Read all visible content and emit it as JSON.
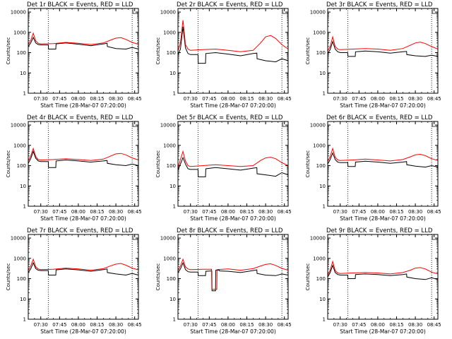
{
  "figure": {
    "background": "#ffffff",
    "events_color": "#000000",
    "lld_color": "#ff0000"
  },
  "chart_data": [
    {
      "type": "line",
      "title": "Det 1r BLACK = Events, RED = LLD",
      "xlabel": "Start Time (28-Mar-07 07:20:00)",
      "ylabel": "Counts/sec",
      "xticks": [
        "07:30",
        "07:45",
        "08:00",
        "08:15",
        "08:30",
        "08:45"
      ],
      "yticks": [
        "1",
        "10",
        "100",
        "1000",
        "10000"
      ],
      "yscale": "log",
      "ylim": [
        1,
        15000
      ],
      "xlim": [
        0,
        88
      ],
      "dotted_vlines_min": [
        16,
        83
      ],
      "series": [
        {
          "name": "Events",
          "color": "#000000",
          "x": [
            0,
            2,
            4,
            6,
            8,
            10,
            15,
            16,
            16.2,
            22,
            22.2,
            30,
            40,
            50,
            60,
            63,
            63.2,
            70,
            78,
            83,
            88
          ],
          "y": [
            200,
            300,
            560,
            300,
            250,
            240,
            240,
            240,
            150,
            150,
            270,
            300,
            260,
            220,
            270,
            290,
            200,
            160,
            150,
            180,
            150
          ]
        },
        {
          "name": "LLD",
          "color": "#ff0000",
          "x": [
            0,
            2,
            4,
            6,
            8,
            10,
            20,
            30,
            40,
            50,
            60,
            66,
            70,
            74,
            78,
            83,
            88
          ],
          "y": [
            250,
            400,
            900,
            380,
            290,
            270,
            280,
            320,
            290,
            250,
            300,
            420,
            520,
            550,
            450,
            320,
            260
          ]
        }
      ]
    },
    {
      "type": "line",
      "title": "Det 2r BLACK = Events, RED = LLD",
      "xlabel": "Start Time (28-Mar-07 07:20:00)",
      "ylabel": "Counts/sec",
      "xticks": [
        "07:30",
        "07:45",
        "08:00",
        "08:15",
        "08:30",
        "08:45"
      ],
      "yticks": [
        "1",
        "10",
        "100",
        "1000",
        "10000"
      ],
      "yscale": "log",
      "ylim": [
        1,
        15000
      ],
      "xlim": [
        0,
        88
      ],
      "dotted_vlines_min": [
        16,
        83
      ],
      "series": [
        {
          "name": "Events",
          "color": "#000000",
          "x": [
            0,
            2,
            4,
            6,
            8,
            10,
            15,
            16,
            16.2,
            22,
            22.2,
            30,
            40,
            50,
            60,
            63,
            63.2,
            70,
            78,
            83,
            88
          ],
          "y": [
            80,
            150,
            1900,
            170,
            90,
            80,
            80,
            80,
            30,
            30,
            90,
            100,
            85,
            70,
            90,
            95,
            50,
            40,
            35,
            50,
            40
          ]
        },
        {
          "name": "LLD",
          "color": "#ff0000",
          "x": [
            0,
            2,
            4,
            6,
            8,
            10,
            20,
            30,
            40,
            50,
            60,
            66,
            70,
            74,
            78,
            83,
            88
          ],
          "y": [
            120,
            300,
            4000,
            250,
            150,
            130,
            140,
            150,
            130,
            110,
            130,
            300,
            600,
            700,
            500,
            250,
            150
          ]
        }
      ]
    },
    {
      "type": "line",
      "title": "Det 3r BLACK = Events, RED = LLD",
      "xlabel": "Start Time (28-Mar-07 07:20:00)",
      "ylabel": "Counts/sec",
      "xticks": [
        "07:30",
        "07:45",
        "08:00",
        "08:15",
        "08:30",
        "08:45"
      ],
      "yticks": [
        "1",
        "10",
        "100",
        "1000",
        "10000"
      ],
      "yscale": "log",
      "ylim": [
        1,
        15000
      ],
      "xlim": [
        0,
        88
      ],
      "dotted_vlines_min": [
        16,
        83
      ],
      "series": [
        {
          "name": "Events",
          "color": "#000000",
          "x": [
            0,
            2,
            4,
            6,
            8,
            10,
            15,
            16,
            16.2,
            22,
            22.2,
            30,
            40,
            50,
            60,
            63,
            63.2,
            70,
            78,
            83,
            88
          ],
          "y": [
            90,
            140,
            350,
            150,
            110,
            100,
            100,
            100,
            65,
            65,
            110,
            120,
            110,
            95,
            110,
            115,
            80,
            70,
            65,
            75,
            65
          ]
        },
        {
          "name": "LLD",
          "color": "#ff0000",
          "x": [
            0,
            2,
            4,
            6,
            8,
            10,
            20,
            30,
            40,
            50,
            60,
            66,
            70,
            74,
            78,
            83,
            88
          ],
          "y": [
            120,
            200,
            600,
            200,
            150,
            140,
            150,
            160,
            150,
            130,
            160,
            230,
            300,
            330,
            280,
            200,
            150
          ]
        }
      ]
    },
    {
      "type": "line",
      "title": "Det 4r BLACK = Events, RED = LLD",
      "xlabel": "Start Time (28-Mar-07 07:20:00)",
      "ylabel": "Counts/sec",
      "xticks": [
        "07:30",
        "07:45",
        "08:00",
        "08:15",
        "08:30",
        "08:45"
      ],
      "yticks": [
        "1",
        "10",
        "100",
        "1000",
        "10000"
      ],
      "yscale": "log",
      "ylim": [
        1,
        15000
      ],
      "xlim": [
        0,
        88
      ],
      "dotted_vlines_min": [
        16,
        83
      ],
      "series": [
        {
          "name": "Events",
          "color": "#000000",
          "x": [
            0,
            2,
            4,
            6,
            8,
            10,
            15,
            16,
            16.2,
            22,
            22.2,
            30,
            40,
            50,
            60,
            63,
            63.2,
            70,
            78,
            83,
            88
          ],
          "y": [
            130,
            220,
            500,
            230,
            170,
            160,
            160,
            160,
            80,
            80,
            170,
            190,
            170,
            150,
            170,
            180,
            130,
            110,
            100,
            120,
            100
          ]
        },
        {
          "name": "LLD",
          "color": "#ff0000",
          "x": [
            0,
            2,
            4,
            6,
            8,
            10,
            20,
            30,
            40,
            50,
            60,
            66,
            70,
            74,
            78,
            83,
            88
          ],
          "y": [
            170,
            300,
            700,
            280,
            200,
            190,
            200,
            220,
            200,
            180,
            210,
            300,
            380,
            400,
            340,
            240,
            190
          ]
        }
      ]
    },
    {
      "type": "line",
      "title": "Det 5r BLACK = Events, RED = LLD",
      "xlabel": "Start Time (28-Mar-07 07:20:00)",
      "ylabel": "Counts/sec",
      "xticks": [
        "07:30",
        "07:45",
        "08:00",
        "08:15",
        "08:30",
        "08:45"
      ],
      "yticks": [
        "1",
        "10",
        "100",
        "1000",
        "10000"
      ],
      "yscale": "log",
      "ylim": [
        1,
        15000
      ],
      "xlim": [
        0,
        88
      ],
      "dotted_vlines_min": [
        16,
        83
      ],
      "series": [
        {
          "name": "Events",
          "color": "#000000",
          "x": [
            0,
            2,
            4,
            6,
            8,
            10,
            15,
            16,
            16.2,
            22,
            22.2,
            30,
            40,
            50,
            60,
            63,
            63.2,
            70,
            78,
            83,
            88
          ],
          "y": [
            60,
            120,
            250,
            120,
            70,
            65,
            65,
            65,
            28,
            28,
            70,
            80,
            70,
            60,
            75,
            80,
            40,
            35,
            30,
            45,
            35
          ]
        },
        {
          "name": "LLD",
          "color": "#ff0000",
          "x": [
            0,
            2,
            4,
            6,
            8,
            10,
            20,
            30,
            40,
            50,
            60,
            66,
            70,
            74,
            78,
            83,
            88
          ],
          "y": [
            80,
            200,
            500,
            170,
            100,
            90,
            100,
            110,
            100,
            90,
            100,
            180,
            240,
            260,
            220,
            140,
            100
          ]
        }
      ]
    },
    {
      "type": "line",
      "title": "Det 6r BLACK = Events, RED = LLD",
      "xlabel": "Start Time (28-Mar-07 07:20:00)",
      "ylabel": "Counts/sec",
      "xticks": [
        "07:30",
        "07:45",
        "08:00",
        "08:15",
        "08:30",
        "08:45"
      ],
      "yticks": [
        "1",
        "10",
        "100",
        "1000",
        "10000"
      ],
      "yscale": "log",
      "ylim": [
        1,
        15000
      ],
      "xlim": [
        0,
        88
      ],
      "dotted_vlines_min": [
        16,
        83
      ],
      "series": [
        {
          "name": "Events",
          "color": "#000000",
          "x": [
            0,
            2,
            4,
            6,
            8,
            10,
            15,
            16,
            16.2,
            22,
            22.2,
            30,
            40,
            50,
            60,
            63,
            63.2,
            70,
            78,
            83,
            88
          ],
          "y": [
            120,
            200,
            420,
            200,
            150,
            140,
            140,
            140,
            90,
            90,
            150,
            165,
            150,
            130,
            150,
            160,
            110,
            95,
            85,
            100,
            85
          ]
        },
        {
          "name": "LLD",
          "color": "#ff0000",
          "x": [
            0,
            2,
            4,
            6,
            8,
            10,
            20,
            30,
            40,
            50,
            60,
            66,
            70,
            74,
            78,
            83,
            88
          ],
          "y": [
            160,
            280,
            700,
            260,
            190,
            180,
            190,
            210,
            190,
            170,
            200,
            270,
            340,
            360,
            310,
            220,
            180
          ]
        }
      ]
    },
    {
      "type": "line",
      "title": "Det 7r BLACK = Events, RED = LLD",
      "xlabel": "Start Time (28-Mar-07 07:20:00)",
      "ylabel": "Counts/sec",
      "xticks": [
        "07:30",
        "07:45",
        "08:00",
        "08:15",
        "08:30",
        "08:45"
      ],
      "yticks": [
        "1",
        "10",
        "100",
        "1000",
        "10000"
      ],
      "yscale": "log",
      "ylim": [
        1,
        15000
      ],
      "xlim": [
        0,
        88
      ],
      "dotted_vlines_min": [
        16,
        83
      ],
      "series": [
        {
          "name": "Events",
          "color": "#000000",
          "x": [
            0,
            2,
            4,
            6,
            8,
            10,
            15,
            16,
            16.2,
            22,
            22.2,
            30,
            40,
            50,
            60,
            63,
            63.2,
            70,
            78,
            83,
            88
          ],
          "y": [
            200,
            300,
            600,
            310,
            260,
            250,
            250,
            250,
            150,
            150,
            270,
            300,
            270,
            230,
            280,
            300,
            200,
            170,
            150,
            180,
            150
          ]
        },
        {
          "name": "LLD",
          "color": "#ff0000",
          "x": [
            0,
            2,
            4,
            6,
            8,
            10,
            20,
            30,
            40,
            50,
            60,
            66,
            70,
            74,
            78,
            83,
            88
          ],
          "y": [
            250,
            420,
            900,
            380,
            300,
            280,
            290,
            330,
            300,
            260,
            310,
            430,
            520,
            560,
            460,
            330,
            270
          ]
        }
      ]
    },
    {
      "type": "line",
      "title": "Det 8r BLACK = Events, RED = LLD",
      "xlabel": "Start Time (28-Mar-07 07:20:00)",
      "ylabel": "Counts/sec",
      "xticks": [
        "07:30",
        "07:45",
        "08:00",
        "08:15",
        "08:30",
        "08:45"
      ],
      "yticks": [
        "1",
        "10",
        "100",
        "1000",
        "10000"
      ],
      "yscale": "log",
      "ylim": [
        1,
        15000
      ],
      "xlim": [
        0,
        88
      ],
      "dotted_vlines_min": [
        16,
        83
      ],
      "series": [
        {
          "name": "Events",
          "color": "#000000",
          "x": [
            0,
            2,
            4,
            6,
            8,
            10,
            15,
            16,
            16.2,
            22,
            22.2,
            27,
            27.2,
            30,
            30.2,
            33,
            33.2,
            40,
            50,
            60,
            63,
            63.2,
            70,
            78,
            83,
            88
          ],
          "y": [
            200,
            300,
            600,
            280,
            220,
            210,
            210,
            210,
            140,
            140,
            230,
            240,
            25,
            25,
            260,
            260,
            240,
            230,
            200,
            250,
            270,
            180,
            150,
            140,
            170,
            150
          ]
        },
        {
          "name": "LLD",
          "color": "#ff0000",
          "x": [
            0,
            2,
            4,
            6,
            8,
            10,
            20,
            26.8,
            27,
            27.2,
            31,
            31.2,
            40,
            50,
            60,
            66,
            70,
            74,
            78,
            83,
            88
          ],
          "y": [
            250,
            420,
            900,
            380,
            300,
            280,
            290,
            290,
            30,
            30,
            30,
            280,
            300,
            260,
            310,
            420,
            500,
            540,
            450,
            320,
            260
          ]
        }
      ]
    },
    {
      "type": "line",
      "title": "Det 9r BLACK = Events, RED = LLD",
      "xlabel": "Start Time (28-Mar-07 07:20:00)",
      "ylabel": "Counts/sec",
      "xticks": [
        "07:30",
        "07:45",
        "08:00",
        "08:15",
        "08:30",
        "08:45"
      ],
      "yticks": [
        "1",
        "10",
        "100",
        "1000",
        "10000"
      ],
      "yscale": "log",
      "ylim": [
        1,
        15000
      ],
      "xlim": [
        0,
        88
      ],
      "dotted_vlines_min": [
        16,
        83
      ],
      "series": [
        {
          "name": "Events",
          "color": "#000000",
          "x": [
            0,
            2,
            4,
            6,
            8,
            10,
            15,
            16,
            16.2,
            22,
            22.2,
            30,
            40,
            50,
            60,
            63,
            63.2,
            70,
            78,
            83,
            88
          ],
          "y": [
            120,
            200,
            450,
            200,
            160,
            150,
            150,
            150,
            100,
            100,
            160,
            170,
            160,
            140,
            160,
            170,
            120,
            100,
            90,
            110,
            90
          ]
        },
        {
          "name": "LLD",
          "color": "#ff0000",
          "x": [
            0,
            2,
            4,
            6,
            8,
            10,
            20,
            30,
            40,
            50,
            60,
            66,
            70,
            74,
            78,
            83,
            88
          ],
          "y": [
            150,
            260,
            700,
            250,
            190,
            180,
            190,
            200,
            190,
            170,
            200,
            260,
            330,
            350,
            300,
            210,
            170
          ]
        }
      ]
    }
  ]
}
